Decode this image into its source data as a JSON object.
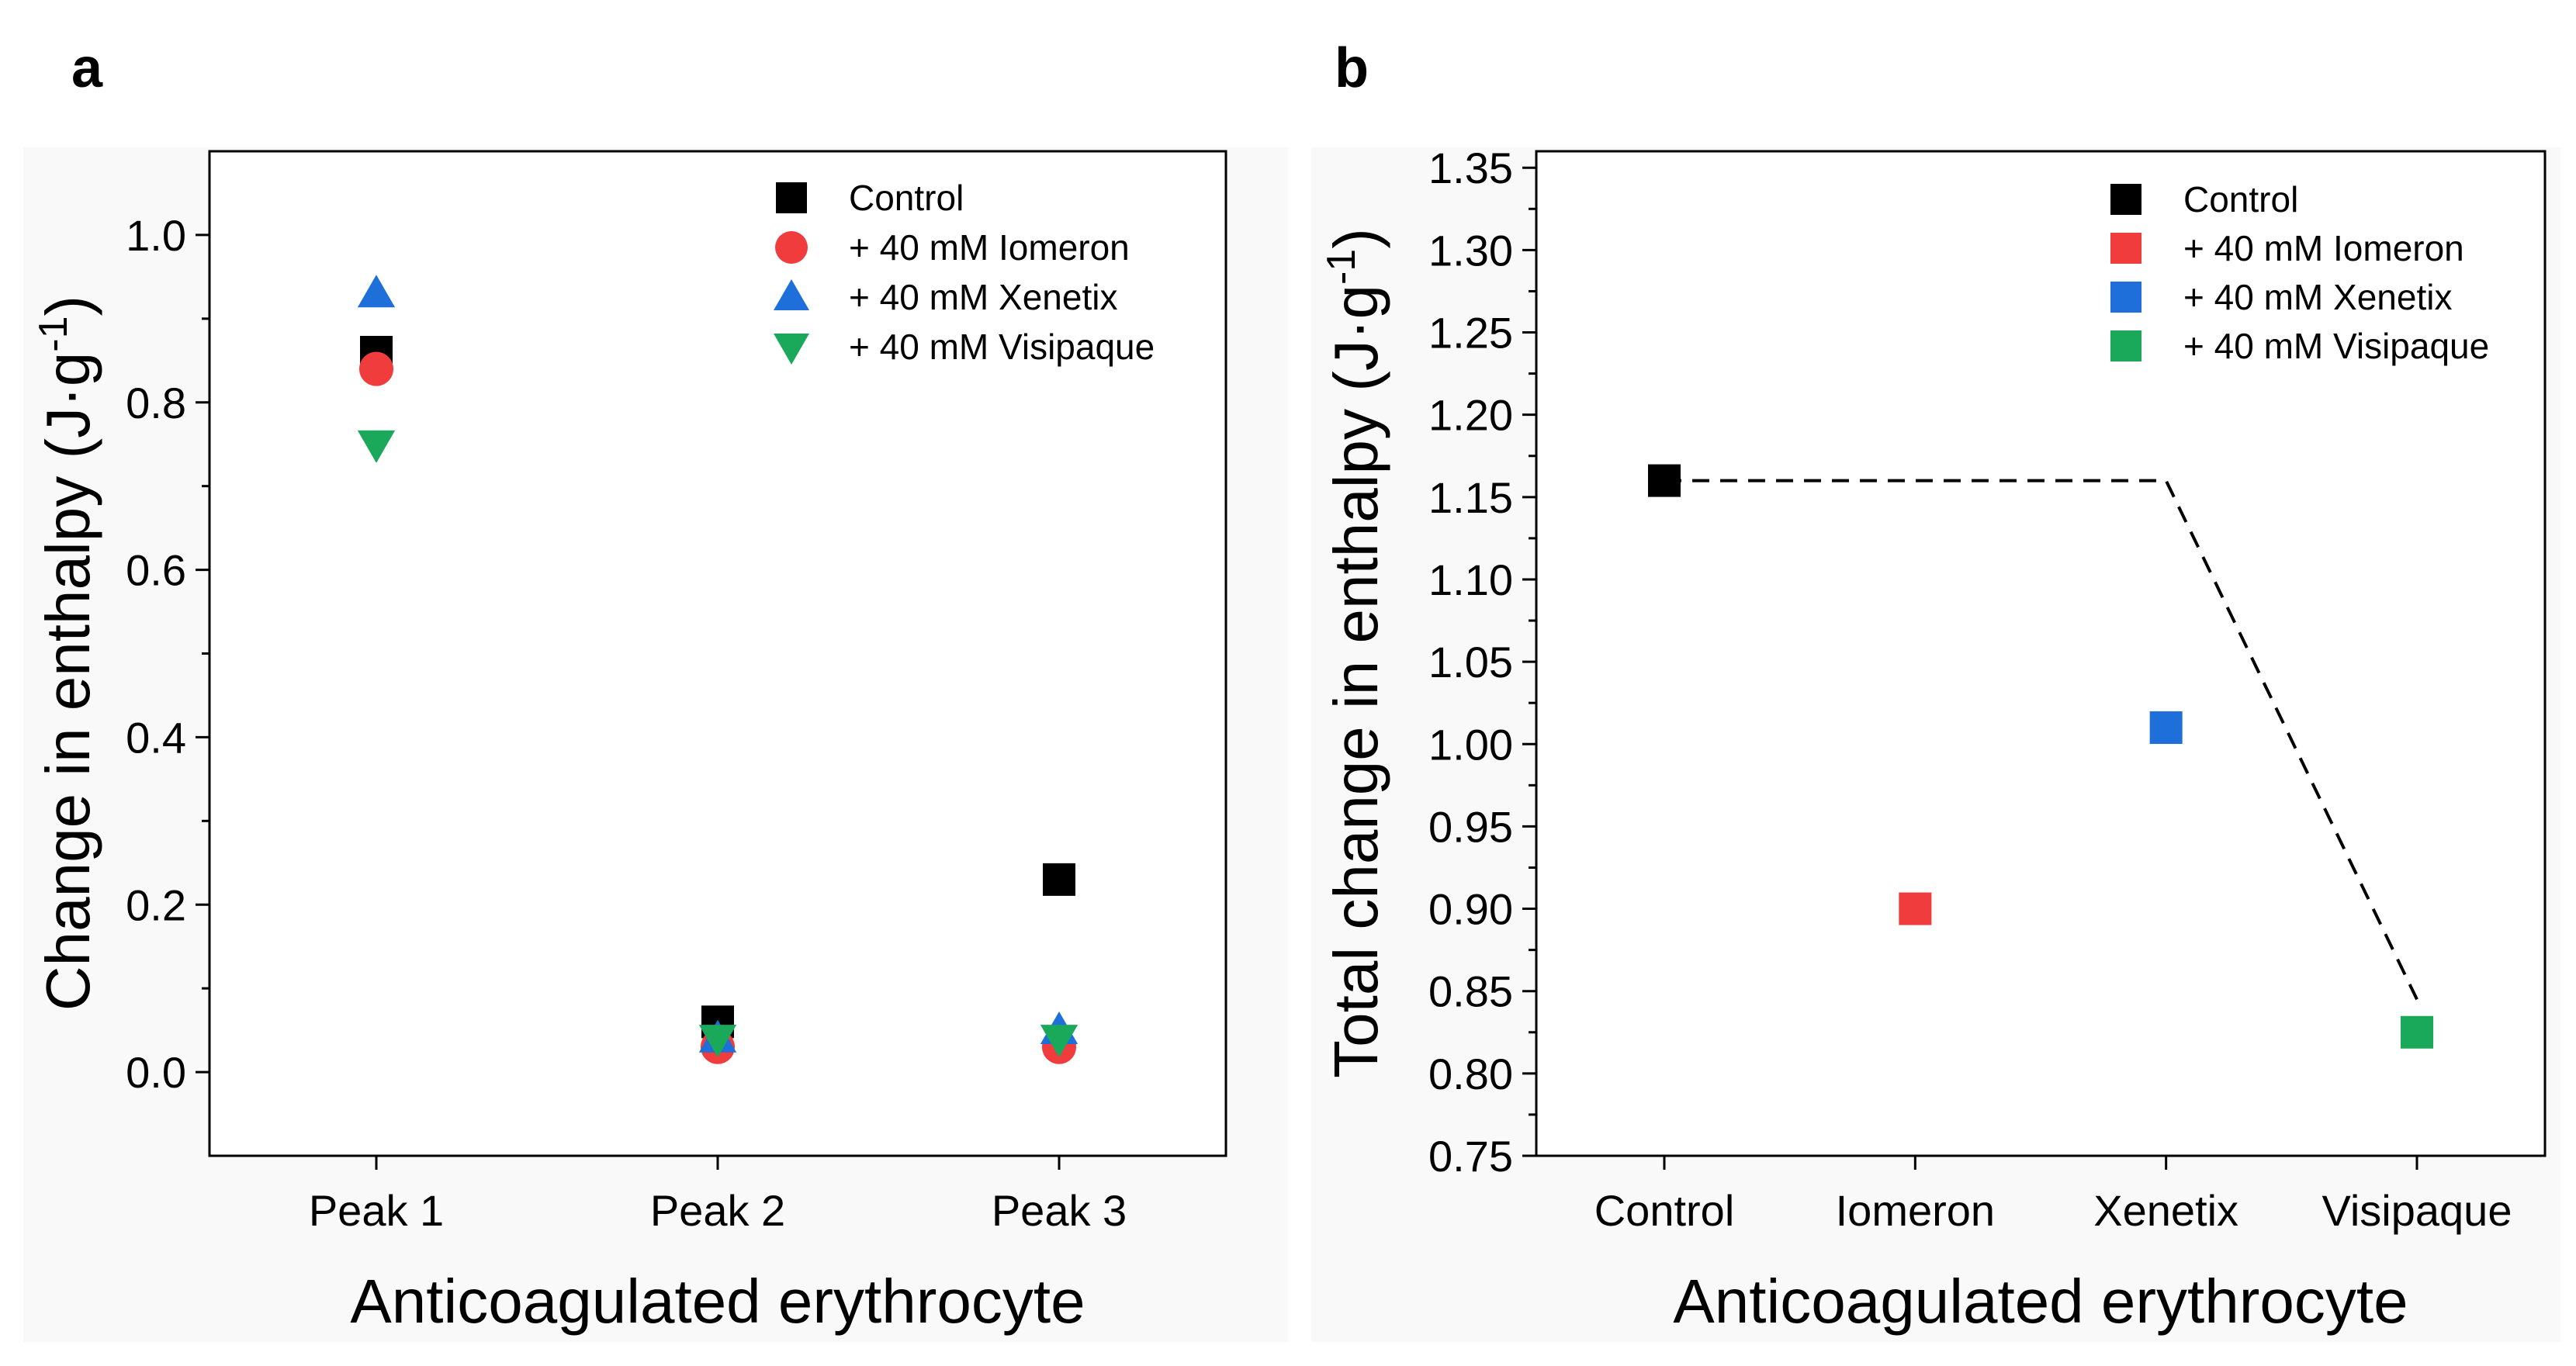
{
  "chart_data": [
    {
      "panel_label": "a",
      "type": "scatter",
      "categories": [
        "Peak 1",
        "Peak 2",
        "Peak 3"
      ],
      "series": [
        {
          "name": "Control",
          "marker": "square",
          "color": "#000000",
          "values": [
            0.86,
            0.06,
            0.23
          ]
        },
        {
          "name": "+ 40 mM Iomeron",
          "marker": "circle",
          "color": "#f03c3c",
          "values": [
            0.84,
            0.03,
            0.03
          ]
        },
        {
          "name": "+ 40 mM Xenetix",
          "marker": "triangle-up",
          "color": "#1e6fd9",
          "values": [
            0.93,
            0.04,
            0.05
          ]
        },
        {
          "name": "+ 40 mM Visipaque",
          "marker": "triangle-down",
          "color": "#1aa85a",
          "values": [
            0.75,
            0.04,
            0.04
          ]
        }
      ],
      "xlabel": "Anticoagulated erythrocyte",
      "ylabel_main": "Change in enthalpy (J·g",
      "ylabel_sup": "-1",
      "ylabel_end": ")",
      "ylim": [
        -0.1,
        1.1
      ],
      "yticks": [
        0.0,
        0.2,
        0.4,
        0.6,
        0.8,
        1.0
      ],
      "ytick_labels": [
        "0.0",
        "0.2",
        "0.4",
        "0.6",
        "0.8",
        "1.0"
      ],
      "legend_position": "top-right"
    },
    {
      "panel_label": "b",
      "type": "scatter",
      "categories": [
        "Control",
        "Iomeron",
        "Xenetix",
        "Visipaque"
      ],
      "series": [
        {
          "name": "Control",
          "marker": "square",
          "color": "#000000",
          "values": [
            1.16,
            null,
            null,
            null
          ]
        },
        {
          "name": "+ 40 mM Iomeron",
          "marker": "square",
          "color": "#f03c3c",
          "values": [
            null,
            0.9,
            null,
            null
          ]
        },
        {
          "name": "+ 40 mM Xenetix",
          "marker": "square",
          "color": "#1e6fd9",
          "values": [
            null,
            null,
            1.01,
            null
          ]
        },
        {
          "name": "+ 40 mM Visipaque",
          "marker": "square",
          "color": "#1aa85a",
          "values": [
            null,
            null,
            null,
            0.825
          ]
        }
      ],
      "dashed_line": {
        "x": [
          0,
          2,
          3
        ],
        "y": [
          1.16,
          1.16,
          0.845
        ]
      },
      "xlabel": "Anticoagulated erythrocyte",
      "ylabel_main": "Total change in enthalpy (J·g",
      "ylabel_sup": "-1",
      "ylabel_end": ")",
      "ylim": [
        0.75,
        1.36
      ],
      "yticks": [
        0.75,
        0.8,
        0.85,
        0.9,
        0.95,
        1.0,
        1.05,
        1.1,
        1.15,
        1.2,
        1.25,
        1.3,
        1.35
      ],
      "ytick_labels": [
        "0.75",
        "0.80",
        "0.85",
        "0.90",
        "0.95",
        "1.00",
        "1.05",
        "1.10",
        "1.15",
        "1.20",
        "1.25",
        "1.30",
        "1.35"
      ],
      "legend_position": "top-right"
    }
  ]
}
